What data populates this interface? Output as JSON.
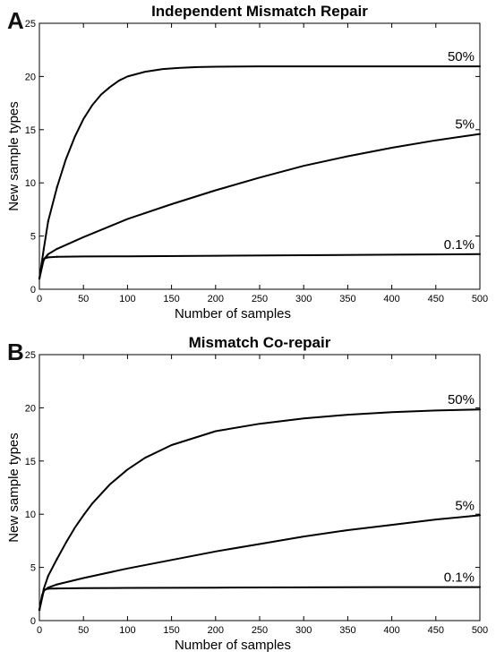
{
  "chart_data": [
    {
      "type": "line",
      "panel_label": "A",
      "title": "Independent Mismatch Repair",
      "xlabel": "Number of samples",
      "ylabel": "New sample types",
      "xlim": [
        0,
        500
      ],
      "ylim": [
        0,
        25
      ],
      "xticks": [
        "0",
        "50",
        "100",
        "150",
        "200",
        "250",
        "300",
        "350",
        "400",
        "450",
        "500"
      ],
      "yticks": [
        "0",
        "5",
        "10",
        "15",
        "20",
        "25"
      ],
      "grid": false,
      "series": [
        {
          "name": "50%",
          "x": [
            0,
            5,
            10,
            20,
            30,
            40,
            50,
            60,
            70,
            80,
            90,
            100,
            120,
            140,
            160,
            180,
            200,
            250,
            300,
            350,
            400,
            450,
            500
          ],
          "values": [
            1,
            3.8,
            6.4,
            9.6,
            12.2,
            14.3,
            16.0,
            17.3,
            18.3,
            19.0,
            19.6,
            20.0,
            20.45,
            20.7,
            20.82,
            20.88,
            20.92,
            20.95,
            20.95,
            20.95,
            20.95,
            20.95,
            20.95
          ]
        },
        {
          "name": "5%",
          "x": [
            0,
            5,
            10,
            20,
            50,
            100,
            150,
            200,
            250,
            300,
            350,
            400,
            450,
            500
          ],
          "values": [
            1,
            2.8,
            3.3,
            3.8,
            4.9,
            6.6,
            8.0,
            9.3,
            10.5,
            11.6,
            12.5,
            13.3,
            14.0,
            14.6
          ]
        },
        {
          "name": "0.1%",
          "x": [
            0,
            3,
            6,
            10,
            20,
            50,
            100,
            200,
            300,
            400,
            500
          ],
          "values": [
            1,
            2.4,
            2.9,
            3.0,
            3.05,
            3.08,
            3.1,
            3.15,
            3.2,
            3.25,
            3.3
          ]
        }
      ]
    },
    {
      "type": "line",
      "panel_label": "B",
      "title": "Mismatch Co-repair",
      "xlabel": "Number of samples",
      "ylabel": "New sample types",
      "xlim": [
        0,
        500
      ],
      "ylim": [
        0,
        25
      ],
      "xticks": [
        "0",
        "50",
        "100",
        "150",
        "200",
        "250",
        "300",
        "350",
        "400",
        "450",
        "500"
      ],
      "yticks": [
        "0",
        "5",
        "10",
        "15",
        "20",
        "25"
      ],
      "grid": false,
      "series": [
        {
          "name": "50%",
          "x": [
            0,
            5,
            10,
            20,
            30,
            40,
            50,
            60,
            80,
            100,
            120,
            150,
            200,
            250,
            300,
            350,
            400,
            450,
            500
          ],
          "values": [
            1,
            3.0,
            4.2,
            5.8,
            7.3,
            8.7,
            9.9,
            11.0,
            12.8,
            14.2,
            15.3,
            16.5,
            17.8,
            18.5,
            19.0,
            19.35,
            19.6,
            19.75,
            19.85
          ]
        },
        {
          "name": "5%",
          "x": [
            0,
            5,
            10,
            20,
            50,
            100,
            150,
            200,
            250,
            300,
            350,
            400,
            450,
            500
          ],
          "values": [
            1,
            2.8,
            3.1,
            3.4,
            4.0,
            4.9,
            5.7,
            6.5,
            7.2,
            7.9,
            8.5,
            9.0,
            9.5,
            9.9
          ]
        },
        {
          "name": "0.1%",
          "x": [
            0,
            3,
            6,
            10,
            20,
            50,
            100,
            200,
            300,
            400,
            500
          ],
          "values": [
            1,
            2.4,
            2.9,
            3.0,
            3.02,
            3.05,
            3.07,
            3.1,
            3.12,
            3.15,
            3.15
          ]
        }
      ]
    }
  ]
}
